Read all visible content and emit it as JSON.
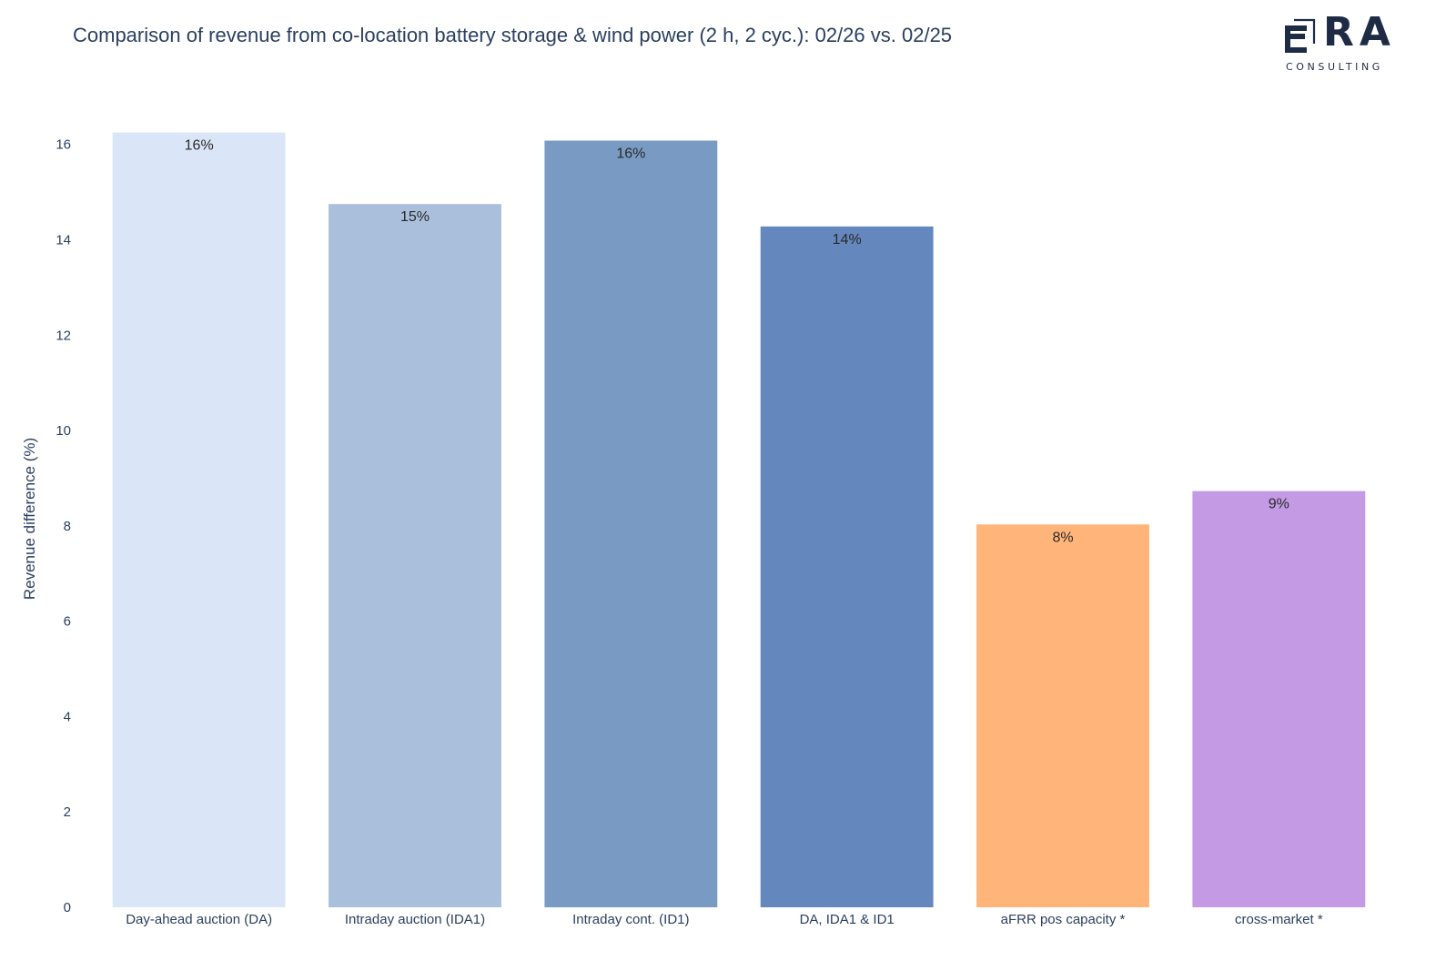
{
  "header": {
    "title": "Comparison of revenue from co-location battery storage & wind power (2 h, 2 cyc.): 02/26 vs. 02/25"
  },
  "logo": {
    "text": "ERA",
    "subtext": "CONSULTING",
    "color": "#1e2b45"
  },
  "chart_data": {
    "type": "bar",
    "title": "Comparison of revenue from co-location battery storage & wind power (2 h, 2 cyc.): 02/26 vs. 02/25",
    "xlabel": "",
    "ylabel": "Revenue difference (%)",
    "ylim": [
      0,
      16.3
    ],
    "yticks": [
      0,
      2,
      4,
      6,
      8,
      10,
      12,
      14,
      16
    ],
    "grid": false,
    "categories": [
      "Day-ahead auction (DA)",
      "Intraday auction (IDA1)",
      "Intraday cont. (ID1)",
      "DA, IDA1 & ID1",
      "aFRR pos capacity *",
      "cross-market *"
    ],
    "values": [
      16.25,
      14.75,
      16.08,
      14.28,
      8.03,
      8.73
    ],
    "data_labels": [
      "16%",
      "15%",
      "16%",
      "14%",
      "8%",
      "9%"
    ],
    "colors": [
      "#dae6f7",
      "#aabfdb",
      "#799bc3",
      "#6487bd",
      "#ffb57a",
      "#c39ae3"
    ]
  }
}
